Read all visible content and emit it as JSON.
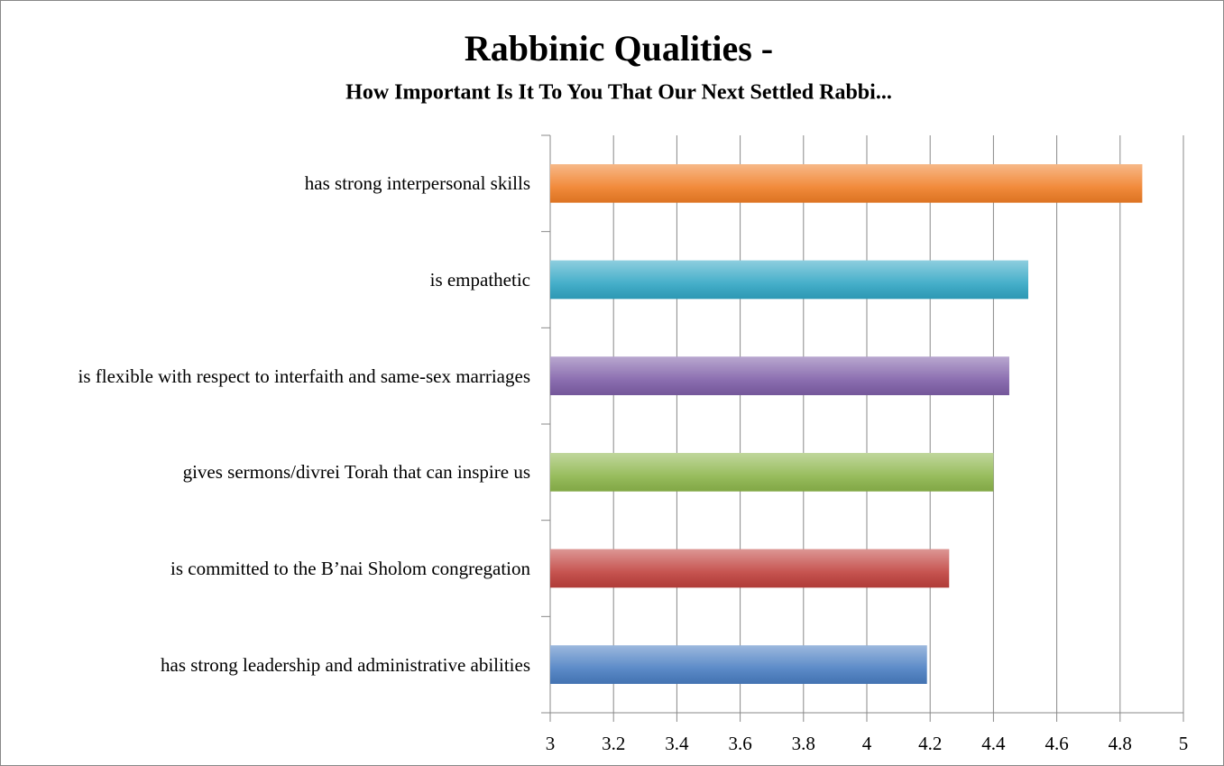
{
  "chart_data": {
    "type": "bar",
    "orientation": "horizontal",
    "title": "Rabbinic Qualities -",
    "subtitle": "How Important Is It To You That Our Next Settled Rabbi...",
    "categories": [
      "has strong interpersonal skills",
      "is empathetic",
      "is flexible with respect to interfaith and same-sex marriages",
      "gives sermons/divrei Torah that can inspire us",
      "is committed to the B’nai Sholom congregation",
      "has strong leadership and administrative abilities"
    ],
    "values": [
      4.87,
      4.51,
      4.45,
      4.4,
      4.26,
      4.19
    ],
    "colors": [
      "#f07e26",
      "#31a6c4",
      "#7f5fa8",
      "#8db64c",
      "#c0413d",
      "#4a7ec2"
    ],
    "xlim": [
      3,
      5
    ],
    "xticks": [
      3,
      3.2,
      3.4,
      3.6,
      3.8,
      4,
      4.2,
      4.4,
      4.6,
      4.8,
      5
    ],
    "grid": true
  }
}
